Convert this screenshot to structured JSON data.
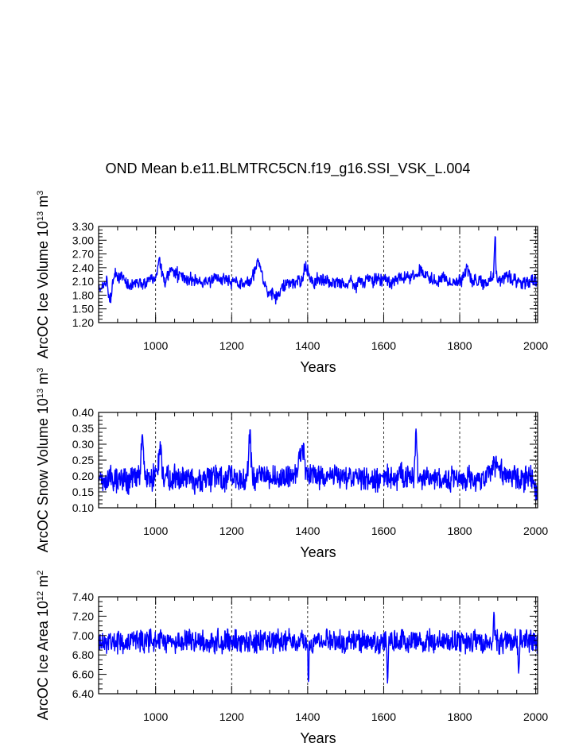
{
  "title": "OND Mean b.e11.BLMTRC5CN.f19_g16.SSI_VSK_L.004",
  "chart_data": [
    {
      "type": "line",
      "ylabel_main": "ArcOC Ice Volume 10",
      "ylabel_exp": "13",
      "ylabel_unit": " m",
      "ylabel_unit_exp": "3",
      "xlabel": "Years",
      "xlim": [
        850,
        2005
      ],
      "ylim": [
        1.2,
        3.3
      ],
      "yticks": [
        "1.20",
        "1.50",
        "1.80",
        "2.10",
        "2.40",
        "2.70",
        "3.00",
        "3.30"
      ],
      "xticks": [
        "1000",
        "1200",
        "1400",
        "1600",
        "1800",
        "2000"
      ],
      "line_color": "#0000ff",
      "series": {
        "name": "Ice Volume",
        "base": 2.12,
        "noise": 0.12,
        "walk": 0.035,
        "seed": 11,
        "clampMin": 1.45,
        "clampMax": 3.1,
        "features": [
          {
            "year": 860,
            "width": 15,
            "amp": -0.1
          },
          {
            "year": 880,
            "width": 6,
            "amp": -0.45
          },
          {
            "year": 1010,
            "width": 6,
            "amp": 0.45
          },
          {
            "year": 1045,
            "width": 15,
            "amp": 0.2
          },
          {
            "year": 1270,
            "width": 12,
            "amp": 0.4
          },
          {
            "year": 1320,
            "width": 25,
            "amp": -0.35
          },
          {
            "year": 1395,
            "width": 8,
            "amp": 0.35
          },
          {
            "year": 1690,
            "width": 40,
            "amp": 0.2
          },
          {
            "year": 1893,
            "width": 3,
            "amp": 0.95
          },
          {
            "year": 1820,
            "width": 6,
            "amp": 0.3
          }
        ]
      }
    },
    {
      "type": "line",
      "ylabel_main": "ArcOC Snow Volume 10",
      "ylabel_exp": "13",
      "ylabel_unit": " m",
      "ylabel_unit_exp": "3",
      "xlabel": "Years",
      "xlim": [
        850,
        2005
      ],
      "ylim": [
        0.1,
        0.4
      ],
      "yticks": [
        "0.10",
        "0.15",
        "0.20",
        "0.25",
        "0.30",
        "0.35",
        "0.40"
      ],
      "xticks": [
        "1000",
        "1200",
        "1400",
        "1600",
        "1800",
        "2000"
      ],
      "line_color": "#0000ff",
      "series": {
        "name": "Snow Volume",
        "base": 0.195,
        "noise": 0.035,
        "walk": 0.004,
        "seed": 23,
        "clampMin": 0.11,
        "clampMax": 0.36,
        "features": [
          {
            "year": 965,
            "width": 4,
            "amp": 0.13
          },
          {
            "year": 1012,
            "width": 5,
            "amp": 0.09
          },
          {
            "year": 1248,
            "width": 4,
            "amp": 0.15
          },
          {
            "year": 1385,
            "width": 8,
            "amp": 0.1
          },
          {
            "year": 1685,
            "width": 3,
            "amp": 0.15
          },
          {
            "year": 1900,
            "width": 15,
            "amp": 0.05
          },
          {
            "year": 2000,
            "width": 6,
            "amp": -0.05
          }
        ]
      }
    },
    {
      "type": "line",
      "ylabel_main": "ArcOC Ice Area 10",
      "ylabel_exp": "12",
      "ylabel_unit": " m",
      "ylabel_unit_exp": "2",
      "xlabel": "Years",
      "xlim": [
        850,
        2005
      ],
      "ylim": [
        6.4,
        7.4
      ],
      "yticks": [
        "6.40",
        "6.60",
        "6.80",
        "7.00",
        "7.20",
        "7.40"
      ],
      "xticks": [
        "1000",
        "1200",
        "1400",
        "1600",
        "1800",
        "2000"
      ],
      "line_color": "#0000ff",
      "series": {
        "name": "Ice Area",
        "base": 6.94,
        "noise": 0.11,
        "walk": 0.0,
        "seed": 37,
        "clampMin": 6.46,
        "clampMax": 7.24,
        "features": [
          {
            "year": 1402,
            "width": 2,
            "amp": -0.35
          },
          {
            "year": 1610,
            "width": 2,
            "amp": -0.4
          },
          {
            "year": 1890,
            "width": 3,
            "amp": 0.25
          },
          {
            "year": 1955,
            "width": 2,
            "amp": -0.35
          }
        ]
      }
    }
  ]
}
